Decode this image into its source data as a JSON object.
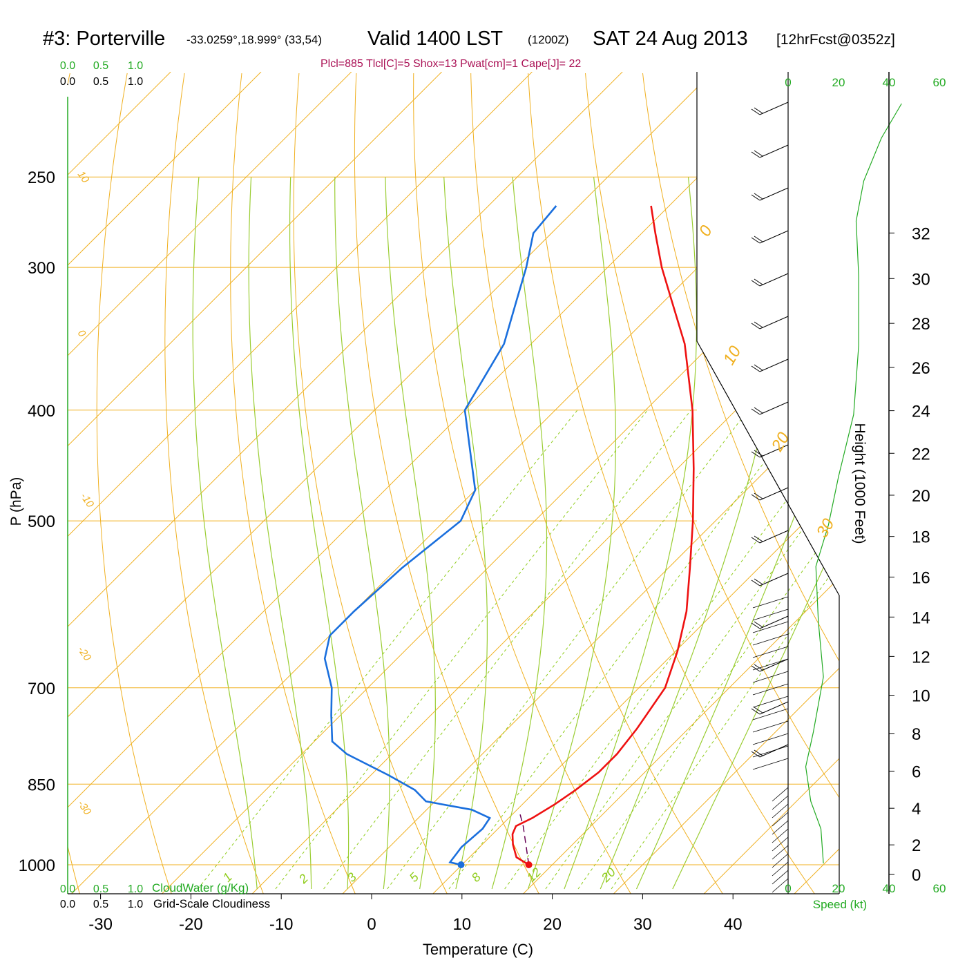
{
  "header": {
    "station": "#3: Porterville",
    "coords": "-33.0259°,18.999° (33,54)",
    "valid": "Valid 1400 LST",
    "z_time": "(1200Z)",
    "date": "SAT 24 Aug 2013",
    "forecast": "[12hrFcst@0352z]",
    "indices": "Plcl=885 Tlcl[C]=5 Shox=13 Pwat[cm]=1 Cape[J]= 22"
  },
  "axes": {
    "x_title": "Temperature (C)",
    "y_title": "P (hPa)",
    "height_title": "Height (1000 Feet)",
    "speed_title": "Speed (kt)",
    "cloud_water_title": "CloudWater (g/Kg)",
    "cloudiness_title": "Grid-Scale Cloudiness",
    "cloud_scale_ticks": [
      "0.0",
      "0.5",
      "1.0"
    ]
  },
  "colors": {
    "temperature": "#ee1111",
    "dewpoint": "#1a6fdd",
    "isotherm_isobar": "#f0b020",
    "moist_adiabat": "#9acd32",
    "mixing_ratio": "#8fcc1a",
    "wind_speed": "#22aa22",
    "parcel": "#660055",
    "title_accent": "#aa1155"
  },
  "chart_data": {
    "type": "skew-t",
    "pressure_levels": [
      1000,
      850,
      700,
      500,
      400,
      300,
      250
    ],
    "pressure_labels": [
      "1000",
      "850",
      "700",
      "500",
      "400",
      "300",
      "250"
    ],
    "temperature_ticks": [
      -30,
      -20,
      -10,
      0,
      10,
      20,
      30,
      40
    ],
    "temperature_tick_labels": [
      "-30",
      "-20",
      "-10",
      "0",
      "10",
      "20",
      "30",
      "40"
    ],
    "isotherm_labels": [
      "10",
      "0",
      "-10",
      "-20",
      "-30",
      "0",
      "10",
      "20",
      "30"
    ],
    "mixing_ratio_labels": [
      "1",
      "2",
      "3",
      "5",
      "8",
      "12",
      "20"
    ],
    "height_kft_ticks": [
      0,
      2,
      4,
      6,
      8,
      10,
      12,
      14,
      16,
      18,
      20,
      22,
      24,
      26,
      28,
      30,
      32
    ],
    "height_kft_labels": [
      "0",
      "2",
      "4",
      "6",
      "8",
      "10",
      "12",
      "14",
      "16",
      "18",
      "20",
      "22",
      "24",
      "26",
      "28",
      "30",
      "32"
    ],
    "speed_ticks_kt": [
      "0",
      "20",
      "40",
      "60"
    ],
    "temperature_profile": [
      {
        "p": 1000,
        "t": 17.4
      },
      {
        "p": 985,
        "t": 15.2
      },
      {
        "p": 960,
        "t": 13.4
      },
      {
        "p": 940,
        "t": 12.2
      },
      {
        "p": 925,
        "t": 11.7
      },
      {
        "p": 910,
        "t": 12.6
      },
      {
        "p": 885,
        "t": 13.6
      },
      {
        "p": 860,
        "t": 14.3
      },
      {
        "p": 830,
        "t": 14.9
      },
      {
        "p": 800,
        "t": 14.9
      },
      {
        "p": 760,
        "t": 14.3
      },
      {
        "p": 700,
        "t": 12.9
      },
      {
        "p": 650,
        "t": 10.2
      },
      {
        "p": 600,
        "t": 6.8
      },
      {
        "p": 550,
        "t": 2.4
      },
      {
        "p": 500,
        "t": -2.5
      },
      {
        "p": 450,
        "t": -8.2
      },
      {
        "p": 400,
        "t": -14.8
      },
      {
        "p": 350,
        "t": -23.0
      },
      {
        "p": 320,
        "t": -29.4
      },
      {
        "p": 300,
        "t": -34.0
      },
      {
        "p": 280,
        "t": -38.5
      },
      {
        "p": 265,
        "t": -42.0
      }
    ],
    "dewpoint_profile": [
      {
        "p": 1000,
        "t": 9.9
      },
      {
        "p": 995,
        "t": 8.4
      },
      {
        "p": 965,
        "t": 8.0
      },
      {
        "p": 930,
        "t": 8.3
      },
      {
        "p": 910,
        "t": 7.9
      },
      {
        "p": 895,
        "t": 5.0
      },
      {
        "p": 880,
        "t": -1.0
      },
      {
        "p": 860,
        "t": -3.5
      },
      {
        "p": 835,
        "t": -8.0
      },
      {
        "p": 800,
        "t": -15.0
      },
      {
        "p": 780,
        "t": -18.0
      },
      {
        "p": 740,
        "t": -21.0
      },
      {
        "p": 700,
        "t": -24.0
      },
      {
        "p": 660,
        "t": -28.0
      },
      {
        "p": 630,
        "t": -30.0
      },
      {
        "p": 600,
        "t": -30.0
      },
      {
        "p": 550,
        "t": -29.5
      },
      {
        "p": 500,
        "t": -28.2
      },
      {
        "p": 470,
        "t": -30.0
      },
      {
        "p": 400,
        "t": -40.0
      },
      {
        "p": 350,
        "t": -43.0
      },
      {
        "p": 320,
        "t": -46.5
      },
      {
        "p": 300,
        "t": -49.0
      },
      {
        "p": 280,
        "t": -52.0
      },
      {
        "p": 265,
        "t": -52.5
      }
    ],
    "parcel_path": [
      {
        "p": 1000,
        "t": 17.4
      },
      {
        "p": 925,
        "t": 12.5
      },
      {
        "p": 900,
        "t": 10.6
      }
    ],
    "surface_points": {
      "temperature": 17.4,
      "dewpoint": 9.9
    }
  }
}
